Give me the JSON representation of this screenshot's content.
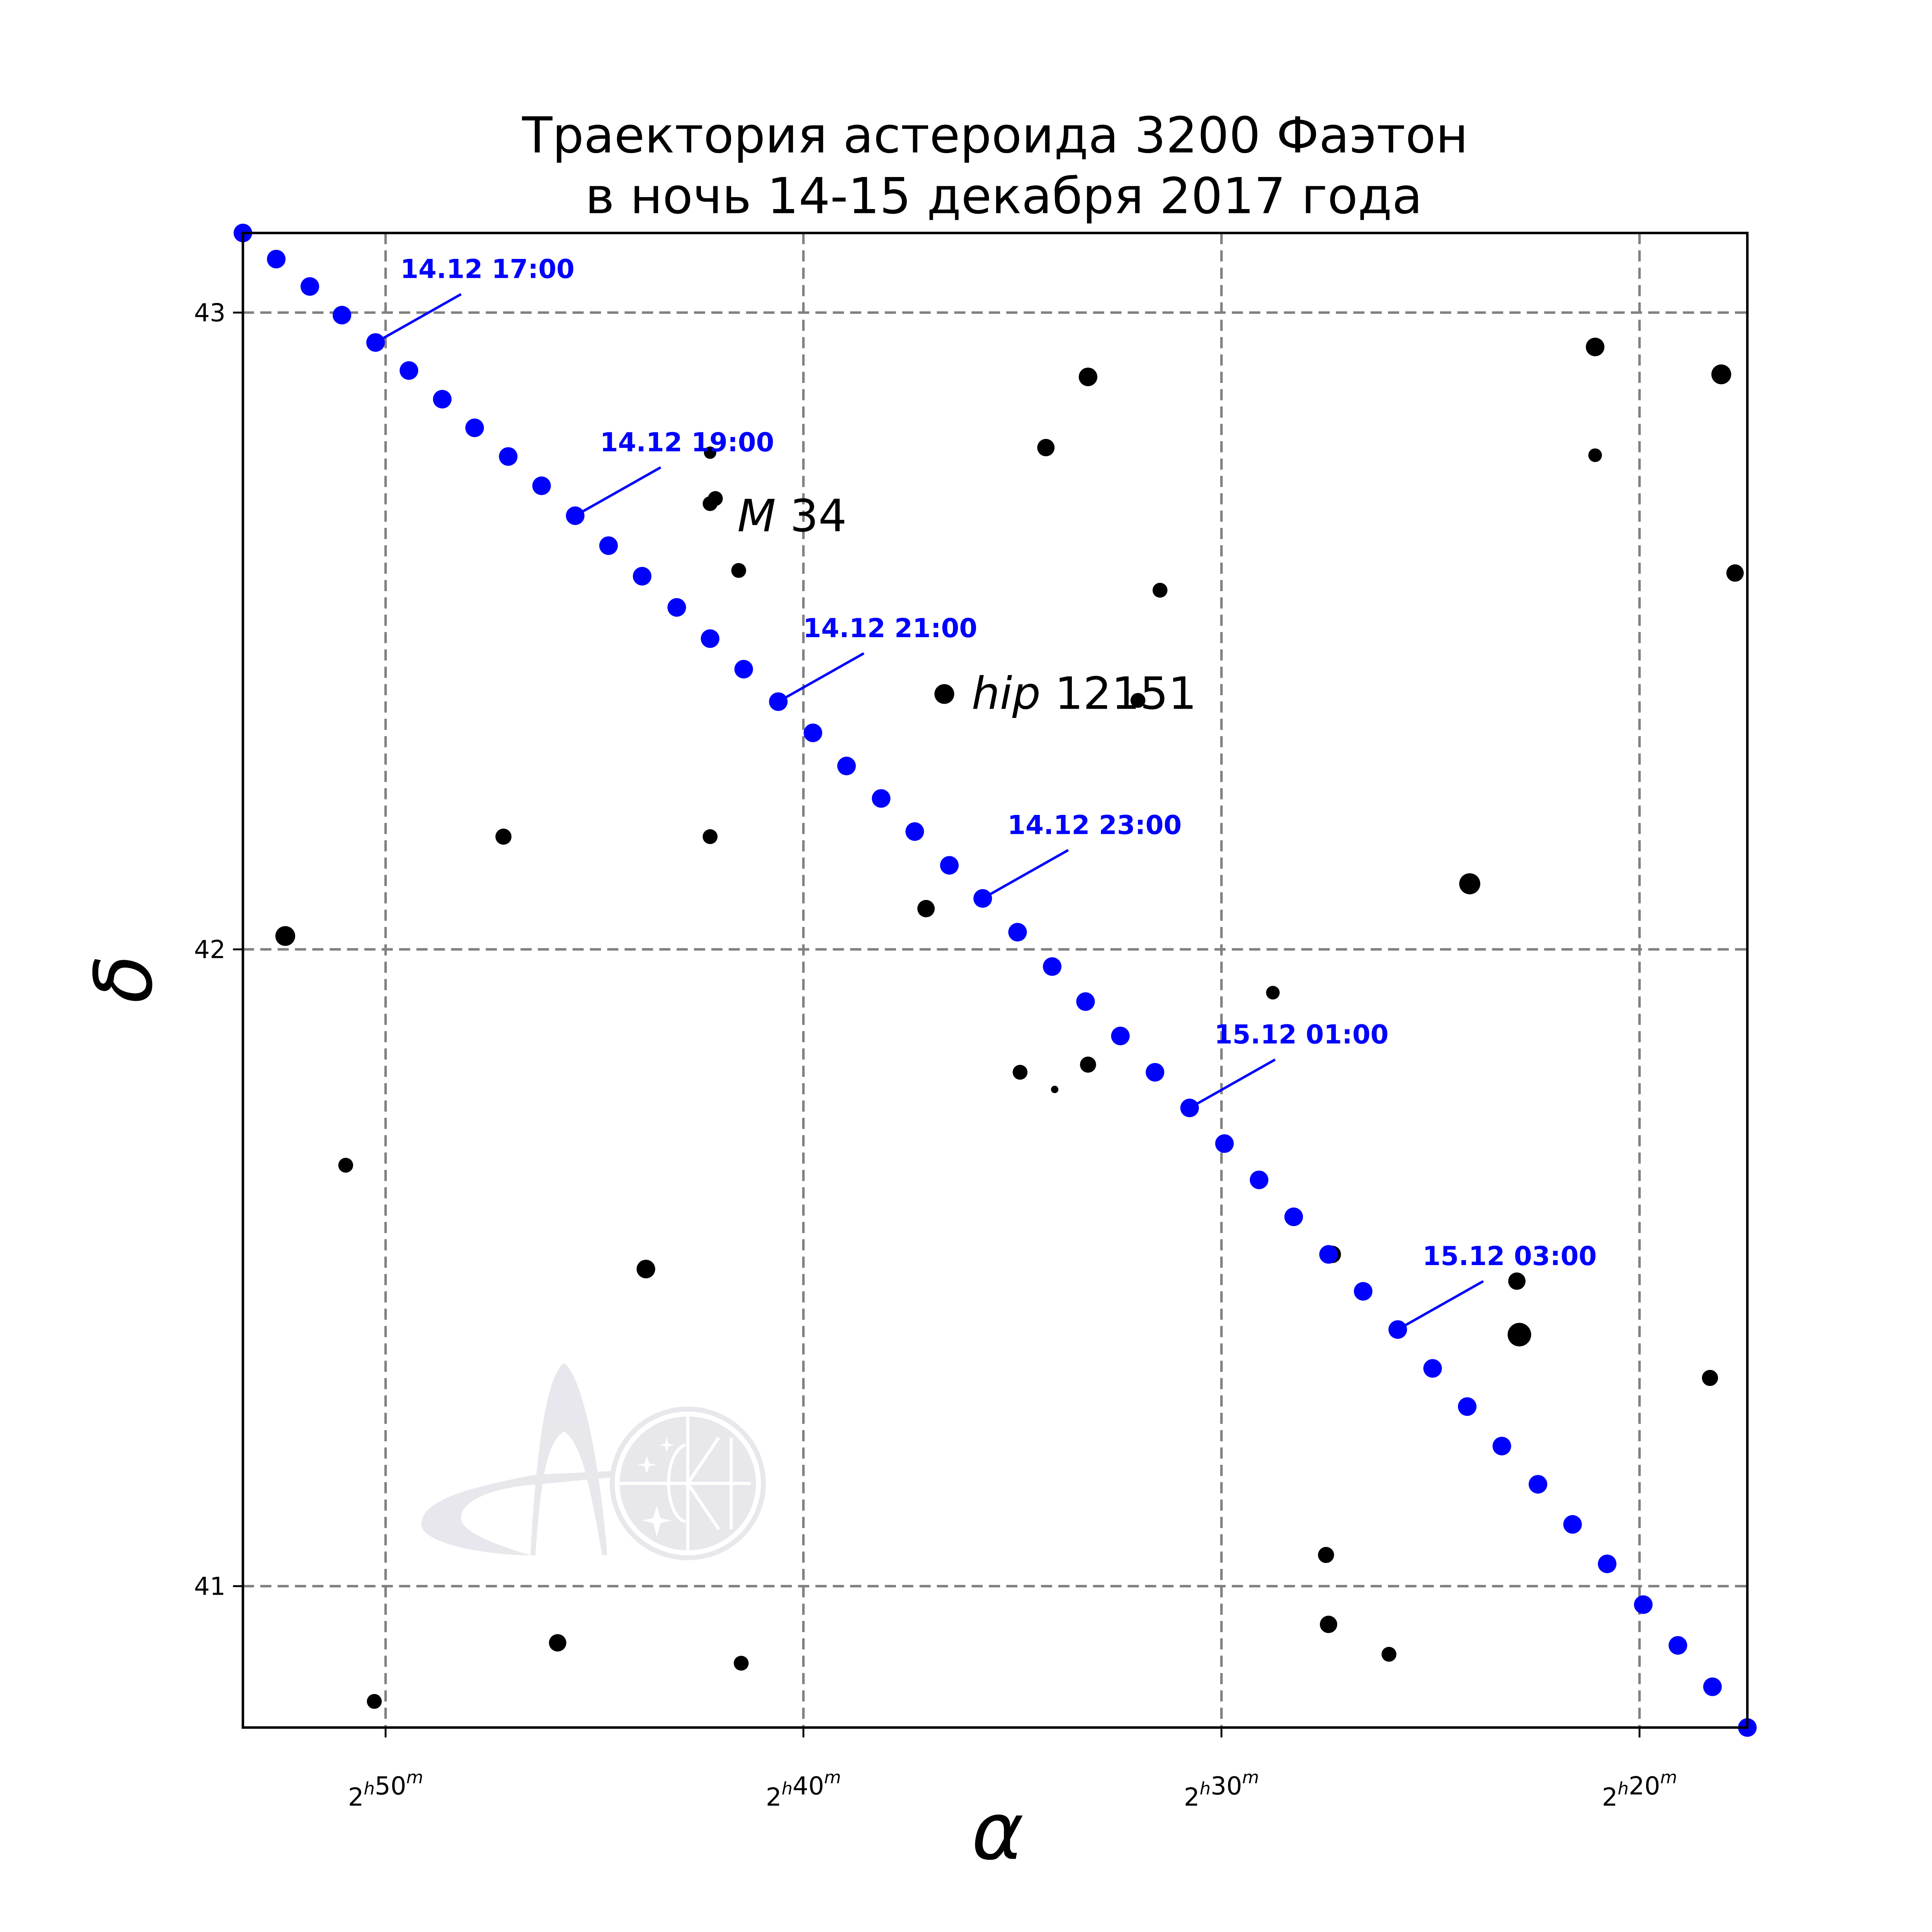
{
  "chart_data": {
    "type": "scatter",
    "title": [
      "Траектория астероида 3200 Фаэтон",
      "в ночь 14-15 декабря 2017 года"
    ],
    "xlabel": "α",
    "ylabel": "δ",
    "x_unit": "hours of right ascension",
    "y_unit": "degrees of declination",
    "xlim": [
      2.8902,
      2.2903
    ],
    "x_inverted": true,
    "ylim": [
      40.778,
      43.125
    ],
    "grid": true,
    "grid_style": "dashed",
    "xticks": [
      {
        "value": 2.8333,
        "h": "2",
        "hs": "h",
        "m": "50",
        "ms": "m"
      },
      {
        "value": 2.6667,
        "h": "2",
        "hs": "h",
        "m": "40",
        "ms": "m"
      },
      {
        "value": 2.5,
        "h": "2",
        "hs": "h",
        "m": "30",
        "ms": "m"
      },
      {
        "value": 2.3333,
        "h": "2",
        "hs": "h",
        "m": "20",
        "ms": "m"
      }
    ],
    "yticks": [
      {
        "value": 43,
        "label": "43"
      },
      {
        "value": 42,
        "label": "42"
      },
      {
        "value": 41,
        "label": "41"
      }
    ],
    "colors": {
      "asteroid": "#0000ff",
      "stars": "#000000",
      "grid": "#808080",
      "logo": "#e6e6ec"
    },
    "asteroid_track": [
      [
        2.8902,
        43.125
      ],
      [
        2.8769,
        43.084
      ],
      [
        2.8635,
        43.041
      ],
      [
        2.8507,
        42.996
      ],
      [
        2.8373,
        42.953
      ],
      [
        2.824,
        42.909
      ],
      [
        2.8107,
        42.864
      ],
      [
        2.7978,
        42.819
      ],
      [
        2.7844,
        42.774
      ],
      [
        2.7711,
        42.728
      ],
      [
        2.7577,
        42.681
      ],
      [
        2.7444,
        42.634
      ],
      [
        2.731,
        42.586
      ],
      [
        2.7172,
        42.537
      ],
      [
        2.7039,
        42.488
      ],
      [
        2.6905,
        42.44
      ],
      [
        2.6767,
        42.389
      ],
      [
        2.6629,
        42.34
      ],
      [
        2.6495,
        42.288
      ],
      [
        2.6357,
        42.237
      ],
      [
        2.6223,
        42.185
      ],
      [
        2.6085,
        42.132
      ],
      [
        2.5952,
        42.08
      ],
      [
        2.5813,
        42.027
      ],
      [
        2.5675,
        41.973
      ],
      [
        2.5542,
        41.918
      ],
      [
        2.5403,
        41.864
      ],
      [
        2.5265,
        41.807
      ],
      [
        2.5127,
        41.751
      ],
      [
        2.4988,
        41.695
      ],
      [
        2.485,
        41.638
      ],
      [
        2.4712,
        41.58
      ],
      [
        2.4573,
        41.521
      ],
      [
        2.4435,
        41.463
      ],
      [
        2.4297,
        41.403
      ],
      [
        2.4158,
        41.342
      ],
      [
        2.402,
        41.282
      ],
      [
        2.3882,
        41.22
      ],
      [
        2.3738,
        41.16
      ],
      [
        2.36,
        41.097
      ],
      [
        2.3462,
        41.035
      ],
      [
        2.3318,
        40.971
      ],
      [
        2.318,
        40.907
      ],
      [
        2.3042,
        40.842
      ],
      [
        2.2903,
        40.778
      ]
    ],
    "time_labels": [
      {
        "index": 4,
        "text": "14.12 17:00"
      },
      {
        "index": 10,
        "text": "14.12 19:00"
      },
      {
        "index": 16,
        "text": "14.12 21:00"
      },
      {
        "index": 22,
        "text": "14.12 23:00"
      },
      {
        "index": 28,
        "text": "15.12 01:00"
      },
      {
        "index": 34,
        "text": "15.12 03:00"
      }
    ],
    "stars": [
      {
        "ra": 2.7039,
        "dec": 42.78,
        "size": 5
      },
      {
        "ra": 2.7018,
        "dec": 42.708,
        "size": 6
      },
      {
        "ra": 2.7039,
        "dec": 42.7,
        "size": 6
      },
      {
        "ra": 2.6925,
        "dec": 42.595,
        "size": 6
      },
      {
        "ra": 2.57,
        "dec": 42.788,
        "size": 7
      },
      {
        "ra": 2.5532,
        "dec": 42.899,
        "size": 7.5
      },
      {
        "ra": 2.5245,
        "dec": 42.564,
        "size": 6
      },
      {
        "ra": 2.6105,
        "dec": 42.401,
        "size": 8
      },
      {
        "ra": 2.5333,
        "dec": 42.391,
        "size": 6
      },
      {
        "ra": 2.7863,
        "dec": 42.177,
        "size": 6.5
      },
      {
        "ra": 2.7039,
        "dec": 42.177,
        "size": 6
      },
      {
        "ra": 2.8733,
        "dec": 42.021,
        "size": 8
      },
      {
        "ra": 2.6178,
        "dec": 42.064,
        "size": 7
      },
      {
        "ra": 2.401,
        "dec": 42.103,
        "size": 8.5
      },
      {
        "ra": 2.351,
        "dec": 42.946,
        "size": 7.5
      },
      {
        "ra": 2.3007,
        "dec": 42.903,
        "size": 8
      },
      {
        "ra": 2.351,
        "dec": 42.776,
        "size": 5.5
      },
      {
        "ra": 2.2952,
        "dec": 42.591,
        "size": 7
      },
      {
        "ra": 2.4795,
        "dec": 41.932,
        "size": 5.5
      },
      {
        "ra": 2.5803,
        "dec": 41.807,
        "size": 6
      },
      {
        "ra": 2.5532,
        "dec": 41.819,
        "size": 6.5
      },
      {
        "ra": 2.5665,
        "dec": 41.78,
        "size": 3
      },
      {
        "ra": 2.8492,
        "dec": 41.661,
        "size": 6
      },
      {
        "ra": 2.4558,
        "dec": 41.521,
        "size": 7
      },
      {
        "ra": 2.7295,
        "dec": 41.498,
        "size": 7.5
      },
      {
        "ra": 2.3822,
        "dec": 41.479,
        "size": 7
      },
      {
        "ra": 2.3812,
        "dec": 41.395,
        "size": 9.5
      },
      {
        "ra": 2.3052,
        "dec": 41.327,
        "size": 6.5
      },
      {
        "ra": 2.4583,
        "dec": 41.049,
        "size": 6.5
      },
      {
        "ra": 2.4573,
        "dec": 40.94,
        "size": 7
      },
      {
        "ra": 2.4332,
        "dec": 40.893,
        "size": 6
      },
      {
        "ra": 2.7647,
        "dec": 40.911,
        "size": 7
      },
      {
        "ra": 2.6915,
        "dec": 40.879,
        "size": 6
      },
      {
        "ra": 2.8378,
        "dec": 40.819,
        "size": 6
      }
    ],
    "object_labels": [
      {
        "ra": 2.7039,
        "dec": 42.68,
        "italic": "M",
        "rest": " 34"
      },
      {
        "ra": 2.6105,
        "dec": 42.401,
        "italic": "hip",
        "rest": " 12151"
      }
    ]
  }
}
